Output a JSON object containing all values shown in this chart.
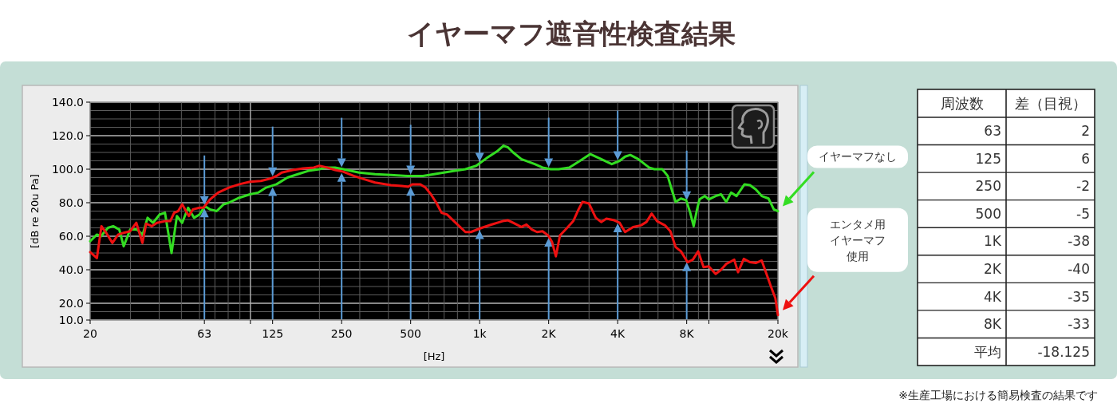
{
  "chart_data": [
    {
      "type": "line",
      "title": "イヤーマフ遮音性検査結果",
      "xlabel": "[Hz]",
      "ylabel": "[dB re 20u Pa]",
      "annotations": [
        "※生産工場における簡易検査の結果です"
      ],
      "log": "x",
      "grid": true,
      "legend": "right",
      "xlim": [
        20,
        20000
      ],
      "ylim": [
        10,
        140
      ],
      "xticks": [
        20,
        63,
        {
          "value": 100,
          "label": null
        },
        125,
        250,
        500,
        {
          "value": 1000,
          "label": "1k"
        },
        {
          "value": 2000,
          "label": "2K"
        },
        {
          "value": 4000,
          "label": "4K"
        },
        {
          "value": 8000,
          "label": "8K"
        },
        {
          "value": 10000,
          "label": null
        },
        {
          "value": 20000,
          "label": "20k"
        }
      ],
      "yticks": [
        {
          "value": 10,
          "label": "10.0"
        },
        {
          "value": 20,
          "label": "20.0"
        },
        {
          "value": 40,
          "label": "40.0"
        },
        {
          "value": 60,
          "label": "60.0"
        },
        {
          "value": 80,
          "label": "80.0"
        },
        {
          "value": 100,
          "label": "100.0"
        },
        {
          "value": 120,
          "label": "120.0"
        },
        {
          "value": 140,
          "label": "140.0"
        }
      ],
      "series": [
        {
          "name": "イヤーマフなし",
          "color": "#33dd22",
          "x": [
            20,
            21.4,
            22.3,
            23.9,
            25.2,
            26.8,
            28,
            29.9,
            32,
            33.9,
            35.6,
            37.6,
            40.2,
            42.4,
            45.3,
            47.8,
            50.4,
            53.5,
            56.8,
            60,
            63.3,
            66.7,
            71.3,
            76.3,
            80.5,
            89.5,
            99.6,
            108,
            117,
            130,
            145,
            161,
            179,
            200,
            216,
            234,
            254,
            298,
            350,
            410,
            482,
            566,
            664,
            779,
            867,
            966,
            1070,
            1200,
            1270,
            1330,
            1400,
            1520,
            1740,
            1880,
            2040,
            2210,
            2460,
            2740,
            3040,
            3390,
            3770,
            4080,
            4310,
            4540,
            4920,
            5480,
            5780,
            6260,
            6610,
            6880,
            7160,
            7550,
            7960,
            8290,
            8580,
            8860,
            9100,
            9600,
            9990,
            10700,
            11300,
            11900,
            12500,
            13200,
            14300,
            15100,
            16000,
            17000,
            18200,
            19200,
            20000
          ],
          "values": [
            57,
            61,
            60,
            65,
            66,
            64,
            54,
            64,
            64,
            61,
            71,
            68,
            73,
            74,
            50,
            72,
            68,
            77,
            71,
            73,
            78,
            76,
            75,
            79,
            80,
            83,
            85,
            86,
            89,
            91,
            95,
            97,
            99,
            100,
            101,
            101,
            100,
            98,
            97,
            96.5,
            96,
            96,
            97.5,
            99,
            100,
            102,
            106.5,
            111,
            114,
            113,
            110,
            106,
            103,
            101,
            100,
            100,
            101,
            105,
            109,
            106,
            103,
            105,
            107.5,
            108.5,
            106,
            101,
            100,
            100,
            96,
            88,
            80.5,
            82.5,
            81.5,
            74,
            66,
            75.5,
            82,
            84,
            82,
            84,
            85,
            80.5,
            86,
            84,
            91,
            90.5,
            88,
            84,
            82.5,
            76,
            75
          ]
        },
        {
          "name": "エンタメ用イヤーマフ使用",
          "color": "#ee1111",
          "x": [
            20,
            21.4,
            22.4,
            23.5,
            25,
            26.5,
            28,
            29.9,
            31.8,
            33.8,
            35.1,
            37.1,
            39.1,
            42.4,
            44.7,
            46.5,
            48.4,
            50.4,
            53.9,
            56.1,
            60,
            62.4,
            66.7,
            72.3,
            80.5,
            89.5,
            99.6,
            111,
            123,
            130,
            137,
            153,
            170,
            189,
            200,
            216,
            234,
            254,
            282,
            314,
            350,
            410,
            457,
            488,
            508,
            551,
            581,
            613,
            647,
            682,
            720,
            779,
            867,
            915,
            1020,
            1130,
            1260,
            1330,
            1400,
            1520,
            1600,
            1690,
            1780,
            1880,
            1990,
            2070,
            2150,
            2240,
            2390,
            2560,
            2700,
            2810,
            3000,
            3210,
            3390,
            3570,
            3870,
            4080,
            4310,
            4670,
            5050,
            5340,
            5630,
            5940,
            6430,
            6790,
            7160,
            7550,
            8070,
            8510,
            8980,
            9480,
            9990,
            10700,
            11300,
            11900,
            12500,
            12900,
            13400,
            14200,
            15100,
            16000,
            17000,
            18000,
            18700,
            19500,
            20000
          ],
          "values": [
            50.5,
            47,
            66,
            62,
            56,
            61,
            62,
            63,
            68,
            56,
            67.5,
            66,
            68,
            69,
            69,
            74,
            75,
            79,
            72,
            76,
            77,
            77,
            82,
            86,
            89,
            91,
            92.5,
            93,
            94.5,
            96,
            98,
            99.5,
            100.5,
            101,
            102,
            101,
            99.5,
            98.5,
            96,
            94,
            92,
            90.5,
            90,
            89.5,
            91,
            91,
            89,
            85,
            80,
            74,
            73,
            68.5,
            62.5,
            62.5,
            65,
            67,
            69,
            69.5,
            68,
            65.5,
            67,
            64,
            62.5,
            63,
            60.5,
            56.5,
            48,
            60.5,
            64.5,
            69,
            76,
            80.5,
            79.5,
            71,
            68.5,
            70.5,
            69.5,
            68,
            62.5,
            65.5,
            66.5,
            68.5,
            73.5,
            69,
            66.5,
            63,
            53.5,
            51,
            44.5,
            46,
            51,
            41.5,
            42,
            37.5,
            40,
            43.5,
            45,
            46,
            38.5,
            46.5,
            44.5,
            44,
            45.5,
            36,
            29.5,
            23,
            13
          ]
        }
      ]
    },
    {
      "type": "other",
      "xlabel": "周波数",
      "ylabel": "差（目視）",
      "data_labels": true,
      "categories": [
        "63",
        "125",
        "250",
        "500",
        "1K",
        "2K",
        "4K",
        "8K",
        "平均"
      ],
      "values": [
        2,
        6,
        -2,
        -5,
        -38,
        -40,
        -35,
        -33,
        -18.125
      ]
    }
  ]
}
